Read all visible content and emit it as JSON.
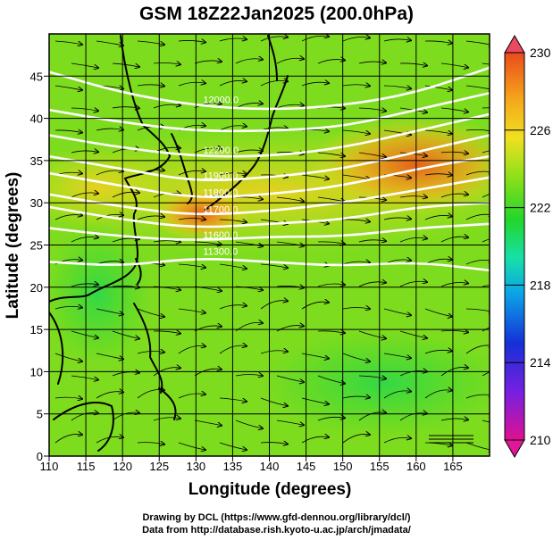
{
  "figure": {
    "title": "GSM 18Z22Jan2025 (200.0hPa)",
    "xlabel": "Longitude (degrees)",
    "ylabel": "Latitude  (degrees)",
    "credit_line_1": "Drawing by DCL (https://www.gfd-dennou.org/library/dcl/)",
    "credit_line_2": "Data from http://database.rish.kyoto-u.ac.jp/arch/jmadata/"
  },
  "chart_data": {
    "type": "heatmap",
    "title": "GSM 18Z22Jan2025 (200.0hPa)",
    "xlabel": "Longitude (degrees)",
    "ylabel": "Latitude  (degrees)",
    "xlim": [
      110,
      170
    ],
    "ylim": [
      0,
      50
    ],
    "x_ticks": [
      "110",
      "115",
      "120",
      "125",
      "130",
      "135",
      "140",
      "145",
      "150",
      "155",
      "160",
      "165"
    ],
    "y_ticks": [
      "0",
      "5",
      "10",
      "15",
      "20",
      "25",
      "30",
      "35",
      "40",
      "45"
    ],
    "colorbar": {
      "min": 210,
      "max": 230,
      "ticks": [
        "210",
        "214",
        "218",
        "222",
        "226",
        "230"
      ],
      "colors": [
        "#e0108f",
        "#7b1fe0",
        "#1530d8",
        "#0aa6e6",
        "#17e0a8",
        "#22d62a",
        "#8ee01a",
        "#f0e020",
        "#f5a61c",
        "#ea4a1c"
      ]
    },
    "temperature_field": [
      {
        "lon": 160,
        "lat": 36,
        "value": 229
      },
      {
        "lon": 152,
        "lat": 33,
        "value": 227
      },
      {
        "lon": 130,
        "lat": 30,
        "value": 227
      },
      {
        "lon": 117,
        "lat": 35,
        "value": 226
      },
      {
        "lon": 160,
        "lat": 10,
        "value": 221
      },
      {
        "lon": 135,
        "lat": 10,
        "value": 223
      },
      {
        "lon": 115,
        "lat": 18,
        "value": 223
      }
    ],
    "height_contours": [
      {
        "label": "12000.0",
        "points": [
          [
            110,
            45.5
          ],
          [
            120,
            43
          ],
          [
            130,
            41.5
          ],
          [
            140,
            41
          ],
          [
            150,
            41.5
          ],
          [
            160,
            43
          ],
          [
            170,
            46
          ]
        ]
      },
      {
        "label": "",
        "points": [
          [
            110,
            41
          ],
          [
            120,
            39.5
          ],
          [
            130,
            38.5
          ],
          [
            140,
            38.5
          ],
          [
            150,
            39
          ],
          [
            160,
            41
          ],
          [
            170,
            43
          ]
        ]
      },
      {
        "label": "12200.0",
        "points": [
          [
            110,
            38
          ],
          [
            120,
            36.5
          ],
          [
            130,
            35.5
          ],
          [
            140,
            35.5
          ],
          [
            150,
            36.5
          ],
          [
            160,
            38.5
          ],
          [
            170,
            40.5
          ]
        ]
      },
      {
        "label": "11900.0",
        "points": [
          [
            110,
            35.5
          ],
          [
            120,
            34
          ],
          [
            130,
            32.5
          ],
          [
            140,
            33
          ],
          [
            150,
            34
          ],
          [
            160,
            36
          ],
          [
            170,
            38
          ]
        ]
      },
      {
        "label": "11800.0",
        "points": [
          [
            110,
            33.5
          ],
          [
            120,
            32
          ],
          [
            130,
            30.5
          ],
          [
            140,
            31
          ],
          [
            150,
            32
          ],
          [
            160,
            34
          ],
          [
            170,
            35.5
          ]
        ]
      },
      {
        "label": "11700.0",
        "points": [
          [
            110,
            31
          ],
          [
            120,
            29.5
          ],
          [
            130,
            28.5
          ],
          [
            140,
            29
          ],
          [
            150,
            30
          ],
          [
            160,
            31.5
          ],
          [
            170,
            33
          ]
        ]
      },
      {
        "label": "",
        "points": [
          [
            110,
            29.5
          ],
          [
            120,
            28
          ],
          [
            130,
            27
          ],
          [
            140,
            27.5
          ],
          [
            150,
            28
          ],
          [
            160,
            29.5
          ],
          [
            170,
            30
          ]
        ]
      },
      {
        "label": "11600.0",
        "points": [
          [
            110,
            27
          ],
          [
            120,
            26
          ],
          [
            130,
            25.5
          ],
          [
            140,
            26
          ],
          [
            150,
            26
          ],
          [
            160,
            27
          ],
          [
            170,
            27.5
          ]
        ]
      },
      {
        "label": "11300.0",
        "points": [
          [
            110,
            23
          ],
          [
            120,
            22.5
          ],
          [
            130,
            23.5
          ],
          [
            140,
            23
          ],
          [
            150,
            22.5
          ],
          [
            160,
            23
          ],
          [
            170,
            22
          ]
        ]
      }
    ]
  }
}
